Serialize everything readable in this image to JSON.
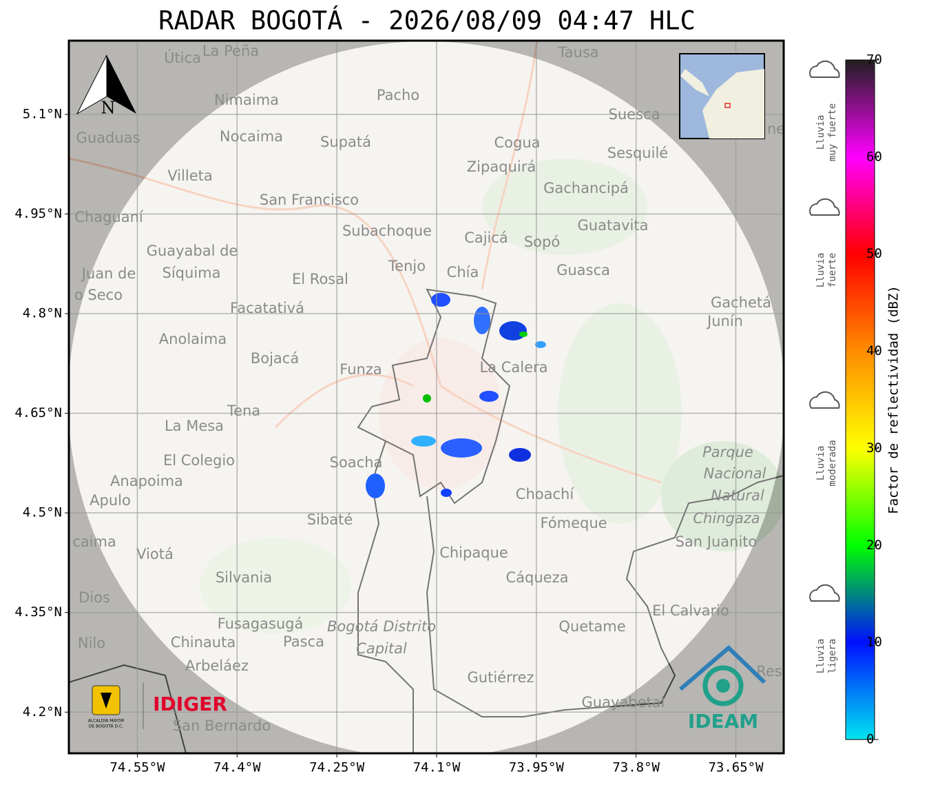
{
  "title": "RADAR BOGOTÁ - 2026/08/09 04:47 HLC",
  "map": {
    "xlim": [
      -74.653,
      -73.578
    ],
    "ylim": [
      4.138,
      5.211
    ],
    "xticks": [
      {
        "value": -74.55,
        "label": "74.55°W"
      },
      {
        "value": -74.4,
        "label": "74.4°W"
      },
      {
        "value": -74.25,
        "label": "74.25°W"
      },
      {
        "value": -74.1,
        "label": "74.1°W"
      },
      {
        "value": -73.95,
        "label": "73.95°W"
      },
      {
        "value": -73.8,
        "label": "73.8°W"
      },
      {
        "value": -73.65,
        "label": "73.65°W"
      }
    ],
    "yticks": [
      {
        "value": 5.1,
        "label": "5.1°N"
      },
      {
        "value": 4.95,
        "label": "4.95°N"
      },
      {
        "value": 4.8,
        "label": "4.8°N"
      },
      {
        "value": 4.65,
        "label": "4.65°N"
      },
      {
        "value": 4.5,
        "label": "4.5°N"
      },
      {
        "value": 4.35,
        "label": "4.35°N"
      },
      {
        "value": 4.2,
        "label": "4.2°N"
      }
    ],
    "grid": true,
    "north": "N",
    "places": [
      "Útica",
      "La Peña",
      "Tausa",
      "Pacho",
      "Nimaima",
      "Suesca",
      "Guaduas",
      "Nocaima",
      "Supatá",
      "Cogua",
      "Sesquilé",
      "Zipaquirá",
      "Villeta",
      "Gachancipá",
      "San Francisco",
      "Chaguaní",
      "Guatavita",
      "Subachoque",
      "Cajicá",
      "Sopó",
      "Guayabal de",
      "Síquima",
      "Juan de",
      "Tenjo",
      "Chía",
      "Guasca",
      "El Rosal",
      "o Seco",
      "Facatativá",
      "Gachetá",
      "Junín",
      "Anolaima",
      "Bojacá",
      "Funza",
      "La Calera",
      "Tena",
      "La Mesa",
      "El Colegio",
      "Soacha",
      "Parque",
      "Nacional",
      "Natural",
      "Chingaza",
      "Anapoima",
      "Apulo",
      "Choachí",
      "Sibaté",
      "Fómeque",
      "San Juanito",
      "caima",
      "Viotá",
      "Chipaque",
      "Silvania",
      "Cáqueza",
      "Dios",
      "El Calvario",
      "Fusagasugá",
      "Bogotá Distrito",
      "Capital",
      "Quetame",
      "Nilo",
      "Chinauta",
      "Pasca",
      "Arbeláez",
      "Gutiérrez",
      "Res",
      "Guayabetal",
      "San Bernardo",
      "ne"
    ]
  },
  "colorbar": {
    "label": "Factor de reflectividad (dBZ)",
    "lim": [
      0,
      70
    ],
    "ticks": [
      0,
      10,
      20,
      30,
      40,
      50,
      60,
      70
    ],
    "colors": [
      "#00e5f0",
      "#0010ff",
      "#00ff00",
      "#ffff00",
      "#ff8c00",
      "#ff0000",
      "#ff00ff",
      "#202020"
    ]
  },
  "legend": [
    [
      "Lluvia",
      "muy fuerte"
    ],
    [
      "Lluvia",
      "fuerte"
    ],
    [
      "Lluvia",
      "moderada"
    ],
    [
      "Lluvia",
      "ligera"
    ]
  ],
  "logos": {
    "alcaldia": [
      "ALCALDÍA MAYOR",
      "DE BOGOTÁ D.C."
    ],
    "idiger": "IDIGER",
    "ideam": "IDEAM"
  }
}
